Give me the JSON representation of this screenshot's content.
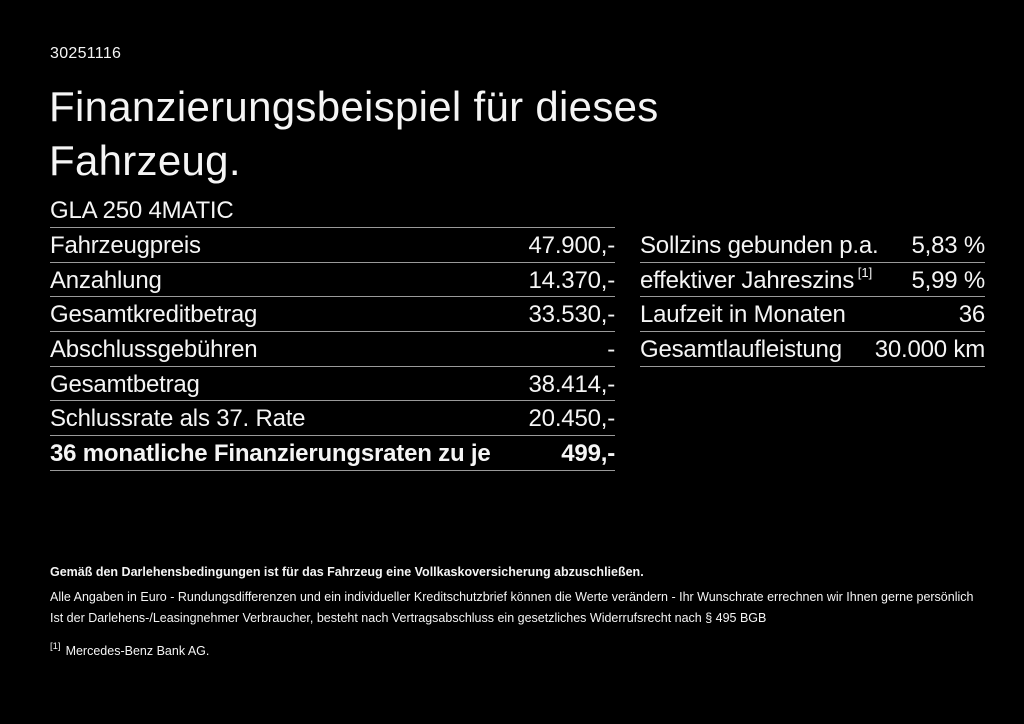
{
  "header": {
    "doc_number": "30251116",
    "title": "Finanzierungsbeispiel für dieses Fahrzeug."
  },
  "vehicle": {
    "model": "GLA 250 4MATIC"
  },
  "financing_table": {
    "rows": [
      {
        "label": "Fahrzeugpreis",
        "value": "47.900,-"
      },
      {
        "label": "Anzahlung",
        "value": "14.370,-"
      },
      {
        "label": "Gesamtkreditbetrag",
        "value": "33.530,-"
      },
      {
        "label": "Abschlussgebühren",
        "value": "-"
      },
      {
        "label": "Gesamtbetrag",
        "value": "38.414,-"
      },
      {
        "label": "Schlussrate als 37. Rate",
        "value": "20.450,-"
      },
      {
        "label": "36 monatliche Finanzierungsraten zu je",
        "value": "499,-",
        "bold": true
      }
    ]
  },
  "conditions_table": {
    "rows": [
      {
        "label": "Sollzins gebunden p.a.",
        "value": "5,83 %"
      },
      {
        "label": "effektiver Jahreszins",
        "sup": "[1]",
        "value": "5,99 %"
      },
      {
        "label": "Laufzeit in Monaten",
        "value": "36"
      },
      {
        "label": "Gesamtlaufleistung",
        "value": "30.000 km"
      }
    ]
  },
  "footer": {
    "insurance_note": "Gemäß den Darlehensbedingungen ist für das Fahrzeug eine Vollkaskoversicherung abzuschließen.",
    "disclaimer_line1": "Alle Angaben in Euro - Rundungsdifferenzen und ein individueller Kreditschutzbrief können die Werte verändern - Ihr Wunschrate errechnen wir Ihnen gerne persönlich",
    "disclaimer_line2": "Ist der Darlehens-/Leasingnehmer Verbraucher, besteht nach Vertragsabschluss ein gesetzliches Widerrufsrecht nach § 495 BGB",
    "footnote_marker": "[1]",
    "footnote_text": "Mercedes-Benz Bank AG."
  },
  "colors": {
    "background": "#000000",
    "text": "#f5f5f5",
    "divider": "#9a9a9a"
  }
}
